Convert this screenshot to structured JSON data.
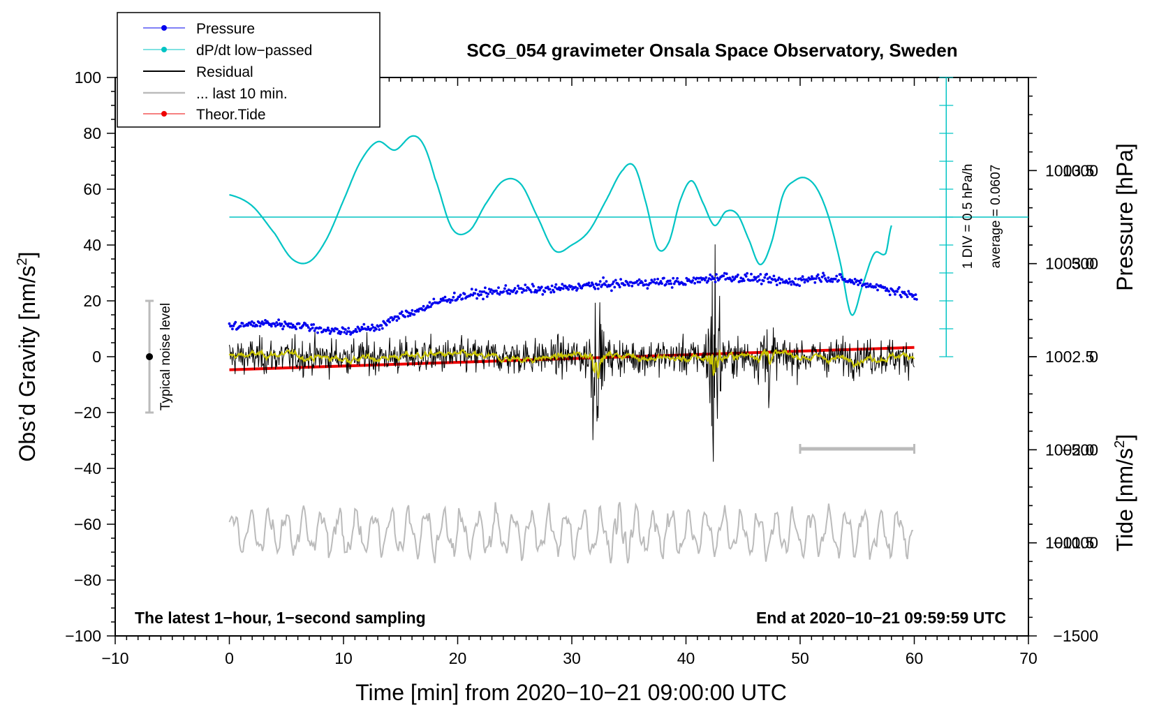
{
  "chart_data": {
    "type": "line",
    "title": "SCG_054 gravimeter Onsala Space Observatory, Sweden",
    "xlabel": "Time [min] from 2020−10−21 09:00:00 UTC",
    "ylabel_left_base": "Obs’d Gravity [nm/s",
    "ylabel_left_sup": "2",
    "ylabel_left_end": "]",
    "ylabel_right_pressure": "Pressure [hPa]",
    "ylabel_right_tide_base": "Tide [nm/s",
    "ylabel_right_tide_sup": "2",
    "ylabel_right_tide_end": "]",
    "xlim": [
      -10,
      70
    ],
    "ylim": [
      -100,
      100
    ],
    "pressure_lim": [
      1001.0,
      1004.0
    ],
    "tide_lim": [
      -1500,
      1500
    ],
    "x_ticks": [
      "−10",
      "0",
      "10",
      "20",
      "30",
      "40",
      "50",
      "60",
      "70"
    ],
    "y_ticks": [
      "−100",
      "−80",
      "−60",
      "−40",
      "−20",
      "0",
      "20",
      "40",
      "60",
      "80",
      "100"
    ],
    "pressure_ticks": [
      "1001.5",
      "1002.0",
      "1002.5",
      "1003.0",
      "1003.5"
    ],
    "tide_ticks": [
      "−1500",
      "−1000",
      "−500",
      "0",
      "500",
      "1000"
    ],
    "legend": [
      "Pressure",
      "dP/dt low−passed",
      "Residual",
      "... last 10 min.",
      "Theor.Tide"
    ],
    "legend_placement": "top-left",
    "bottom_left_note": "The latest 1−hour, 1−second sampling",
    "bottom_right_note": "End at 2020−10−21 09:59:59 UTC",
    "noise_label": "Typical noise level",
    "noise_level": {
      "x": -7,
      "center": 0,
      "range": [
        -20,
        20
      ]
    },
    "scale_bar_label": "1 DIV = 0.5 hPa/h",
    "average_label": "average = 0.0607",
    "last10_span": [
      50,
      60
    ],
    "dpdt_baseline": 50,
    "series": [
      {
        "name": "Pressure",
        "color": "#0000ee",
        "axis": "pressure",
        "x": [
          0,
          3,
          6,
          9,
          11,
          13,
          15,
          17,
          19,
          22,
          25,
          28,
          31,
          34,
          37,
          40,
          43,
          46,
          49,
          52,
          55,
          58,
          60
        ],
        "y": [
          1002.66,
          1002.68,
          1002.67,
          1002.64,
          1002.64,
          1002.66,
          1002.72,
          1002.76,
          1002.81,
          1002.84,
          1002.86,
          1002.86,
          1002.88,
          1002.89,
          1002.9,
          1002.9,
          1002.93,
          1002.92,
          1002.9,
          1002.93,
          1002.9,
          1002.86,
          1002.82
        ]
      },
      {
        "name": "dP/dt low−passed",
        "color": "#00c4c4",
        "axis": "gravity",
        "x": [
          0,
          2,
          4,
          5.5,
          7,
          8.5,
          10,
          11.5,
          13,
          14.5,
          16,
          17,
          18,
          19.5,
          21,
          22.5,
          24,
          25.5,
          27,
          28.5,
          30,
          31.5,
          33,
          34.5,
          35.5,
          36.5,
          37.5,
          38.5,
          39.5,
          40.5,
          41.5,
          42.5,
          43.5,
          44.5,
          45.5,
          46.5,
          47.5,
          48.5,
          49.5,
          50.5,
          51.5,
          52.5,
          53.5,
          54.5,
          55.5,
          56.5,
          57.5,
          58
        ],
        "y": [
          58,
          54,
          44,
          35,
          34,
          42,
          56,
          70,
          77,
          74,
          79,
          76,
          64,
          46,
          45,
          55,
          63,
          62,
          50,
          38,
          40,
          45,
          56,
          67,
          68,
          55,
          39,
          41,
          56,
          63,
          55,
          47,
          52,
          51,
          42,
          33,
          41,
          58,
          63,
          64,
          60,
          50,
          34,
          15,
          26,
          37,
          37,
          47
        ]
      },
      {
        "name": "Residual",
        "color": "#000000",
        "axis": "gravity",
        "x": [
          0,
          60
        ],
        "y": [
          0,
          0
        ],
        "bursts": [
          {
            "x": 32,
            "amplitude": 21
          },
          {
            "x": 42.5,
            "amplitude": 35
          },
          {
            "x": 47,
            "amplitude": 12
          }
        ]
      },
      {
        "name": "... last 10 min.",
        "color": "#bbbbbb",
        "axis": "gravity",
        "x": [
          0,
          60
        ],
        "y": [
          -63,
          -63
        ]
      },
      {
        "name": "Theor.Tide",
        "color": "#ee0000",
        "axis": "tide",
        "x": [
          0,
          60
        ],
        "y": [
          -70,
          50
        ]
      }
    ]
  }
}
